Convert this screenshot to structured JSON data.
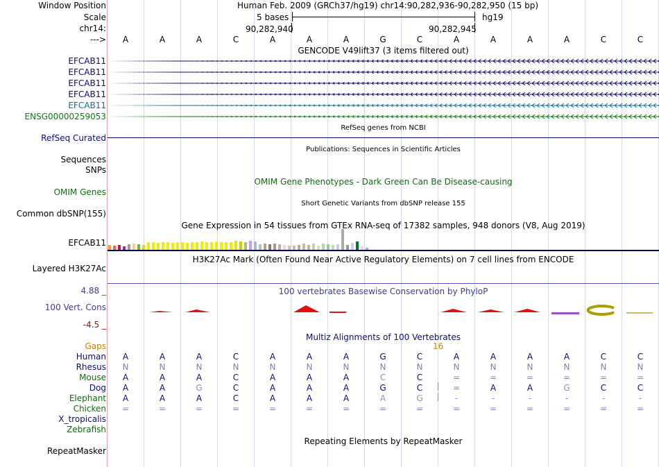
{
  "labels": {
    "window_position": "Window Position",
    "scale": "Scale",
    "chrom": "chr14:",
    "arrow": "--->",
    "gencode_items": [
      "EFCAB11",
      "EFCAB11",
      "EFCAB11",
      "EFCAB11",
      "EFCAB11",
      "ENSG00000259053"
    ],
    "refseq": "RefSeq Curated",
    "sequences": "Sequences",
    "snps": "SNPs",
    "omim": "OMIM Genes",
    "dbsnp": "Common dbSNP(155)",
    "gtex_gene": "EFCAB11",
    "h3k27ac": "Layered H3K27Ac",
    "cons_max": "4.88 _",
    "cons": "100 Vert. Cons",
    "cons_min": "-4.5 _",
    "gaps": "Gaps",
    "species": [
      "Human",
      "Rhesus",
      "Mouse",
      "Dog",
      "Elephant",
      "Chicken",
      "X_tropicalis",
      "Zebrafish"
    ],
    "repeatmasker": "RepeatMasker"
  },
  "header": {
    "title": "Human Feb. 2009 (GRCh37/hg19)   chr14:90,282,936-90,282,950 (15 bp)",
    "scale_text": "5 bases",
    "assembly": "hg19",
    "pos_left": "90,282,940",
    "pos_right": "90,282,945"
  },
  "bases": [
    "A",
    "A",
    "A",
    "C",
    "A",
    "A",
    "A",
    "G",
    "C",
    "A",
    "A",
    "A",
    "A",
    "C",
    "C"
  ],
  "tracks": {
    "gencode": "GENCODE V49lift37 (3 items filtered out)",
    "refseq": "RefSeq genes from NCBI",
    "publications": "Publications: Sequences in Scientific Articles",
    "omim": "OMIM Gene Phenotypes - Dark Green Can Be Disease-causing",
    "dbsnp": "Short Genetic Variants from dbSNP release 155",
    "gtex": "Gene Expression in 54 tissues from GTEx RNA-seq of 17382 samples, 948 donors (V8, Aug 2019)",
    "h3k27ac": "H3K27Ac Mark (Often Found Near Active Regulatory Elements) on 7 cell lines from ENCODE",
    "phylop": "100 vertebrates Basewise Conservation by PhyloP",
    "multiz": "Multiz Alignments of 100 Vertebrates",
    "gap_count": "16",
    "repeatmasker": "Repeating Elements by RepeatMasker"
  },
  "alignment": {
    "Rhesus": [
      "N",
      "N",
      "N",
      "N",
      "N",
      "N",
      "N",
      "N",
      "N",
      "N",
      "N",
      "N",
      "N",
      "N",
      "N"
    ],
    "Mouse": [
      "A",
      "A",
      "A",
      "C",
      "A",
      "A",
      "A",
      "C",
      "C",
      "=",
      "=",
      "=",
      "=",
      "=",
      "="
    ],
    "Dog": [
      "A",
      "A",
      "G",
      "C",
      "A",
      "A",
      "A",
      "G",
      "C",
      "=",
      "A",
      "A",
      "G",
      "C",
      "C"
    ],
    "Elephant": [
      "A",
      "A",
      "A",
      "C",
      "A",
      "A",
      "A",
      "A",
      "G",
      "-",
      "-",
      "-",
      "-",
      "-",
      "-"
    ],
    "Chicken": [
      "=",
      "=",
      "=",
      "=",
      "=",
      "=",
      "=",
      "=",
      "=",
      "=",
      "=",
      "=",
      "=",
      "=",
      "="
    ]
  },
  "colors": {
    "gene_blue": "#0c0c78",
    "gene_teal": "#0c6e9a",
    "gene_green": "#0c7a0c",
    "omim_green": "#0c6e0c",
    "phylop_blue": "#3c3c9c",
    "gaps_orange": "#d08000",
    "cons_red": "#e01010"
  }
}
